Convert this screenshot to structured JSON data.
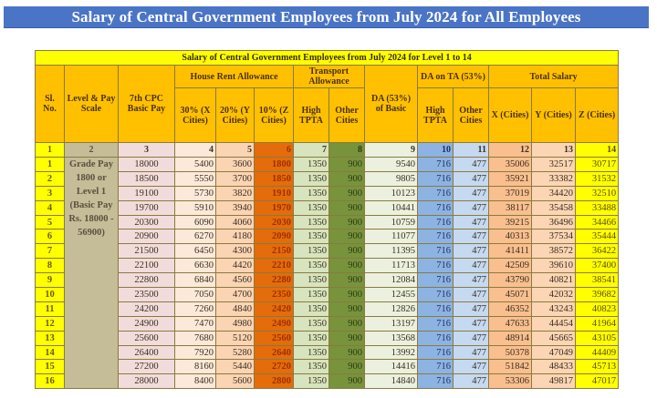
{
  "title": "Salary of Central Government Employees from July 2024 for All Employees",
  "table": {
    "caption": "Salary of Central Government Employees from July 2024 for Level 1 to 14",
    "headers": {
      "sl_no": "Sl. No.",
      "level": "Level & Pay Scale",
      "basic": "7th CPC Basic Pay",
      "hra": "House Rent Allowance",
      "hra_x": "30% (X Cities)",
      "hra_y": "20% (Y Cities)",
      "hra_z": "10% (Z Cities)",
      "ta": "Transport Allowance",
      "ta_high": "High TPTA",
      "ta_other": "Other Cities",
      "da": "DA (53%) of Basic",
      "da_ta": "DA on TA (53%)",
      "da_ta_high": "High TPTA",
      "da_ta_other": "Other Cities",
      "total": "Total Salary",
      "total_x": "X (Cities)",
      "total_y": "Y (Cities)",
      "total_z": "Z (Cities)"
    },
    "column_numbers": [
      "1",
      "2",
      "3",
      "4",
      "5",
      "6",
      "7",
      "8",
      "9",
      "10",
      "11",
      "12",
      "13",
      "14"
    ],
    "level_label": "Grade Pay 1800 or Level 1 (Basic Pay Rs. 18000 - 56900)",
    "rows": [
      [
        "1",
        "18000",
        "5400",
        "3600",
        "1800",
        "1350",
        "900",
        "9540",
        "716",
        "477",
        "35006",
        "32517",
        "30717"
      ],
      [
        "2",
        "18500",
        "5550",
        "3700",
        "1850",
        "1350",
        "900",
        "9805",
        "716",
        "477",
        "35921",
        "33382",
        "31532"
      ],
      [
        "3",
        "19100",
        "5730",
        "3820",
        "1910",
        "1350",
        "900",
        "10123",
        "716",
        "477",
        "37019",
        "34420",
        "32510"
      ],
      [
        "4",
        "19700",
        "5910",
        "3940",
        "1970",
        "1350",
        "900",
        "10441",
        "716",
        "477",
        "38117",
        "35458",
        "33488"
      ],
      [
        "5",
        "20300",
        "6090",
        "4060",
        "2030",
        "1350",
        "900",
        "10759",
        "716",
        "477",
        "39215",
        "36496",
        "34466"
      ],
      [
        "6",
        "20900",
        "6270",
        "4180",
        "2090",
        "1350",
        "900",
        "11077",
        "716",
        "477",
        "40313",
        "37534",
        "35444"
      ],
      [
        "7",
        "21500",
        "6450",
        "4300",
        "2150",
        "1350",
        "900",
        "11395",
        "716",
        "477",
        "41411",
        "38572",
        "36422"
      ],
      [
        "8",
        "22100",
        "6630",
        "4420",
        "2210",
        "1350",
        "900",
        "11713",
        "716",
        "477",
        "42509",
        "39610",
        "37400"
      ],
      [
        "9",
        "22800",
        "6840",
        "4560",
        "2280",
        "1350",
        "900",
        "12084",
        "716",
        "477",
        "43790",
        "40821",
        "38541"
      ],
      [
        "10",
        "23500",
        "7050",
        "4700",
        "2350",
        "1350",
        "900",
        "12455",
        "716",
        "477",
        "45071",
        "42032",
        "39682"
      ],
      [
        "11",
        "24200",
        "7260",
        "4840",
        "2420",
        "1350",
        "900",
        "12826",
        "716",
        "477",
        "46352",
        "43243",
        "40823"
      ],
      [
        "12",
        "24900",
        "7470",
        "4980",
        "2490",
        "1350",
        "900",
        "13197",
        "716",
        "477",
        "47633",
        "44454",
        "41964"
      ],
      [
        "13",
        "25600",
        "7680",
        "5120",
        "2560",
        "1350",
        "900",
        "13568",
        "716",
        "477",
        "48914",
        "45665",
        "43105"
      ],
      [
        "14",
        "26400",
        "7920",
        "5280",
        "2640",
        "1350",
        "900",
        "13992",
        "716",
        "477",
        "50378",
        "47049",
        "44409"
      ],
      [
        "15",
        "27200",
        "8160",
        "5440",
        "2720",
        "1350",
        "900",
        "14416",
        "716",
        "477",
        "51842",
        "48433",
        "45713"
      ],
      [
        "16",
        "28000",
        "8400",
        "5600",
        "2800",
        "1350",
        "900",
        "14840",
        "716",
        "477",
        "53306",
        "49817",
        "47017"
      ]
    ]
  }
}
